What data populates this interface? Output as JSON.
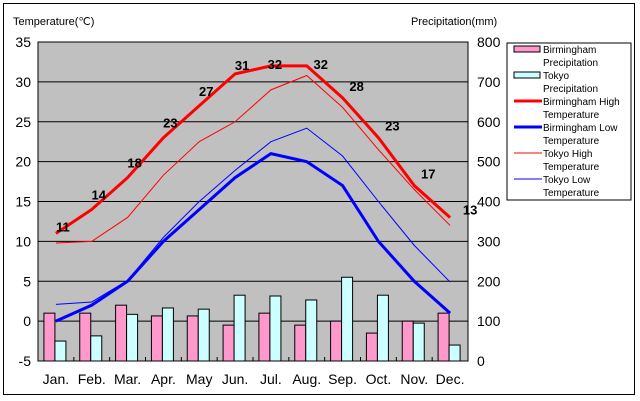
{
  "chart_data": {
    "type": "bar+line",
    "left_axis": {
      "title": "Temperature(℃)",
      "range": [
        -5,
        35
      ],
      "ticks": [
        "35",
        "30",
        "25",
        "20",
        "15",
        "10",
        "5",
        "0",
        "-5"
      ]
    },
    "right_axis": {
      "title": "Precipitation(mm)",
      "range": [
        0,
        800
      ],
      "ticks": [
        "800",
        "700",
        "600",
        "500",
        "400",
        "300",
        "200",
        "100",
        "0"
      ]
    },
    "categories": [
      "Jan.",
      "Feb.",
      "Mar.",
      "Apr.",
      "May",
      "Jun.",
      "Jul.",
      "Aug.",
      "Sep.",
      "Oct.",
      "Nov.",
      "Dec."
    ],
    "grid": true,
    "legend_position": "right",
    "bar_series": [
      {
        "name": "Birmingham Precipitation",
        "color": "#ff99cc",
        "values": [
          120,
          120,
          140,
          113,
          113,
          90,
          120,
          90,
          100,
          70,
          100,
          120
        ]
      },
      {
        "name": "Tokyo Precipitation",
        "color": "#ccffff",
        "values": [
          50,
          63,
          117,
          133,
          130,
          165,
          163,
          153,
          210,
          165,
          95,
          40
        ]
      }
    ],
    "line_series": [
      {
        "name": "Birmingham High Temperature",
        "color": "#ff0000",
        "weight": "thick",
        "values": [
          11,
          14,
          18,
          23,
          27,
          31,
          32,
          32,
          28,
          23,
          17,
          13
        ],
        "labels": [
          "11",
          "14",
          "18",
          "23",
          "27",
          "31",
          "32",
          "32",
          "28",
          "23",
          "17",
          "13"
        ]
      },
      {
        "name": "Birmingham Low Temperature",
        "color": "#0000ff",
        "weight": "thick",
        "values": [
          0,
          2,
          5,
          10,
          14,
          18,
          21,
          20,
          17,
          10,
          5,
          1
        ]
      },
      {
        "name": "Tokyo High Temperature",
        "color": "#ff0000",
        "weight": "thin",
        "values": [
          9.8,
          10,
          13,
          18.3,
          22.5,
          25,
          29,
          30.8,
          26.8,
          21.5,
          16.5,
          12
        ]
      },
      {
        "name": "Tokyo Low Temperature",
        "color": "#0000ff",
        "weight": "thin",
        "values": [
          2.1,
          2.4,
          5.1,
          10.5,
          15,
          18.9,
          22.5,
          24.2,
          20.7,
          15,
          9.5,
          4.9
        ]
      }
    ],
    "legend": [
      {
        "label1": "Birmingham",
        "label2": "Precipitation"
      },
      {
        "label1": "Tokyo",
        "label2": "Precipitation"
      },
      {
        "label1": "Birmingham High",
        "label2": "Temperature"
      },
      {
        "label1": "Birmingham Low",
        "label2": "Temperature"
      },
      {
        "label1": "Tokyo High",
        "label2": "Temperature"
      },
      {
        "label1": "Tokyo Low",
        "label2": "Temperature"
      }
    ],
    "plot_background": "#c0c0c0"
  }
}
